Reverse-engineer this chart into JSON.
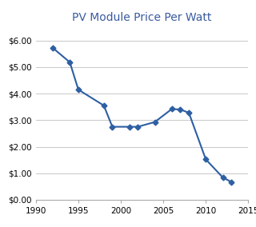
{
  "title": "PV Module Price Per Watt",
  "title_color": "#3A5BA0",
  "title_fontsize": 10,
  "years": [
    1992,
    1994,
    1995,
    1998,
    1999,
    2001,
    2002,
    2004,
    2006,
    2007,
    2008,
    2010,
    2012,
    2013
  ],
  "prices": [
    5.72,
    5.18,
    4.15,
    3.55,
    2.75,
    2.75,
    2.75,
    2.93,
    3.42,
    3.4,
    3.28,
    1.52,
    0.84,
    0.67
  ],
  "line_color": "#2E5FA3",
  "marker": "D",
  "marker_size": 3.5,
  "line_width": 1.5,
  "xlim": [
    1990,
    2015
  ],
  "ylim": [
    0.0,
    6.5
  ],
  "yticks": [
    0.0,
    1.0,
    2.0,
    3.0,
    4.0,
    5.0,
    6.0
  ],
  "xticks": [
    1990,
    1995,
    2000,
    2005,
    2010,
    2015
  ],
  "bg_color": "#FFFFFF",
  "grid_color": "#C8C8C8",
  "border_color": "#AAAAAA",
  "tick_labelsize": 7.5
}
